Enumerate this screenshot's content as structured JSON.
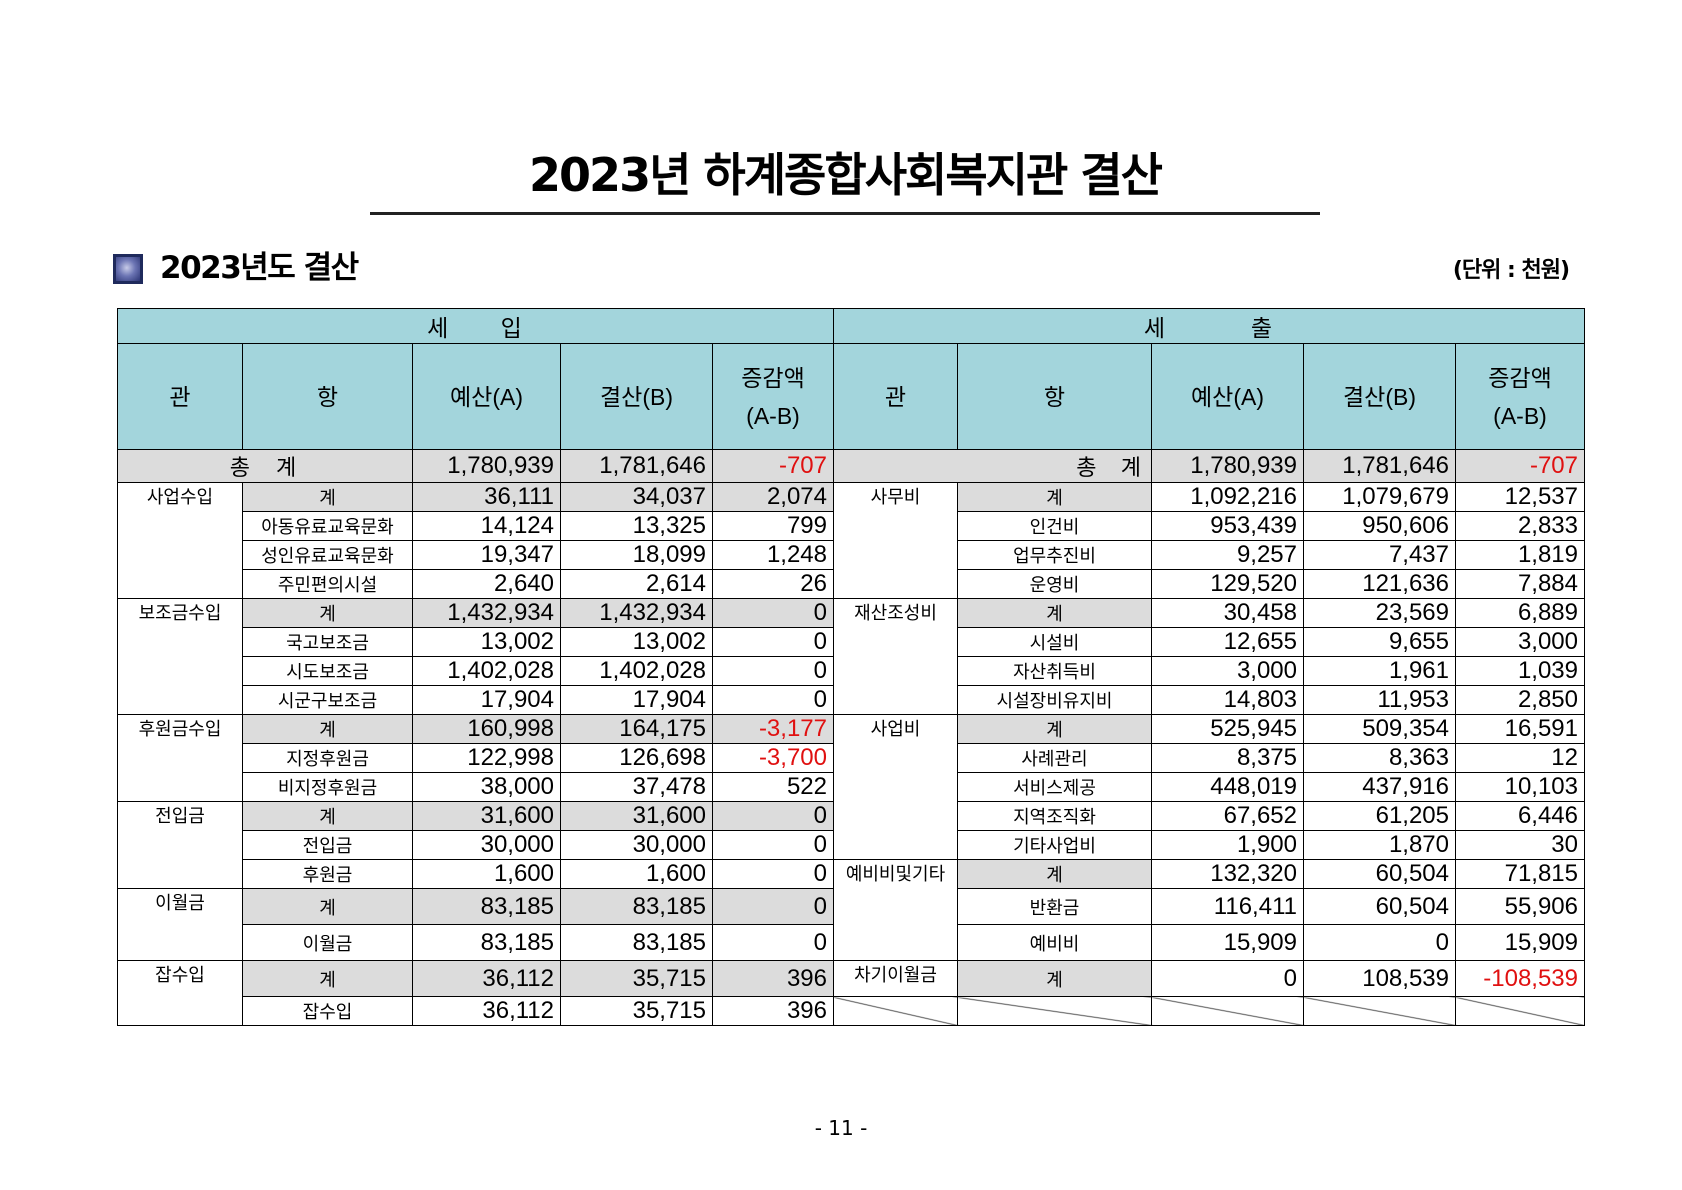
{
  "title": "2023년 하계종합사회복지관 결산",
  "section_title": "2023년도 결산",
  "unit": "(단위 : 천원)",
  "table": {
    "revenue_label": "세      입",
    "expense_label": "세          출",
    "col_gwan": "관",
    "col_hang": "항",
    "col_budget": "예산(A)",
    "col_settle": "결산(B)",
    "col_diff_1": "증감액",
    "col_diff_2": "(A-B)",
    "total_label": "총  계",
    "revenue_total": [
      "1,780,939",
      "1,781,646",
      "-707"
    ],
    "expense_total": [
      "1,780,939",
      "1,781,646",
      "-707"
    ],
    "revenue_rows": [
      {
        "gwan": "사업수입",
        "hang": "계",
        "a": "36,111",
        "b": "34,037",
        "d": "2,074"
      },
      {
        "gwan": "",
        "hang": "아동유료교육문화",
        "a": "14,124",
        "b": "13,325",
        "d": "799"
      },
      {
        "gwan": "",
        "hang": "성인유료교육문화",
        "a": "19,347",
        "b": "18,099",
        "d": "1,248"
      },
      {
        "gwan": "",
        "hang": "주민편의시설",
        "a": "2,640",
        "b": "2,614",
        "d": "26"
      },
      {
        "gwan": "보조금수입",
        "hang": "계",
        "a": "1,432,934",
        "b": "1,432,934",
        "d": "0"
      },
      {
        "gwan": "",
        "hang": "국고보조금",
        "a": "13,002",
        "b": "13,002",
        "d": "0"
      },
      {
        "gwan": "",
        "hang": "시도보조금",
        "a": "1,402,028",
        "b": "1,402,028",
        "d": "0"
      },
      {
        "gwan": "",
        "hang": "시군구보조금",
        "a": "17,904",
        "b": "17,904",
        "d": "0"
      },
      {
        "gwan": "후원금수입",
        "hang": "계",
        "a": "160,998",
        "b": "164,175",
        "d": "-3,177"
      },
      {
        "gwan": "",
        "hang": "지정후원금",
        "a": "122,998",
        "b": "126,698",
        "d": "-3,700"
      },
      {
        "gwan": "",
        "hang": "비지정후원금",
        "a": "38,000",
        "b": "37,478",
        "d": "522"
      },
      {
        "gwan": "전입금",
        "hang": "계",
        "a": "31,600",
        "b": "31,600",
        "d": "0"
      },
      {
        "gwan": "",
        "hang": "전입금",
        "a": "30,000",
        "b": "30,000",
        "d": "0"
      },
      {
        "gwan": "",
        "hang": "후원금",
        "a": "1,600",
        "b": "1,600",
        "d": "0"
      },
      {
        "gwan": "이월금",
        "hang": "계",
        "a": "83,185",
        "b": "83,185",
        "d": "0"
      },
      {
        "gwan": "",
        "hang": "이월금",
        "a": "83,185",
        "b": "83,185",
        "d": "0"
      },
      {
        "gwan": "잡수입",
        "hang": "계",
        "a": "36,112",
        "b": "35,715",
        "d": "396"
      },
      {
        "gwan": "",
        "hang": "잡수입",
        "a": "36,112",
        "b": "35,715",
        "d": "396"
      }
    ],
    "expense_rows": [
      {
        "gwan": "사무비",
        "hang": "계",
        "a": "1,092,216",
        "b": "1,079,679",
        "d": "12,537"
      },
      {
        "gwan": "",
        "hang": "인건비",
        "a": "953,439",
        "b": "950,606",
        "d": "2,833"
      },
      {
        "gwan": "",
        "hang": "업무추진비",
        "a": "9,257",
        "b": "7,437",
        "d": "1,819"
      },
      {
        "gwan": "",
        "hang": "운영비",
        "a": "129,520",
        "b": "121,636",
        "d": "7,884"
      },
      {
        "gwan": "재산조성비",
        "hang": "계",
        "a": "30,458",
        "b": "23,569",
        "d": "6,889"
      },
      {
        "gwan": "",
        "hang": "시설비",
        "a": "12,655",
        "b": "9,655",
        "d": "3,000"
      },
      {
        "gwan": "",
        "hang": "자산취득비",
        "a": "3,000",
        "b": "1,961",
        "d": "1,039"
      },
      {
        "gwan": "",
        "hang": "시설장비유지비",
        "a": "14,803",
        "b": "11,953",
        "d": "2,850"
      },
      {
        "gwan": "사업비",
        "hang": "계",
        "a": "525,945",
        "b": "509,354",
        "d": "16,591"
      },
      {
        "gwan": "",
        "hang": "사례관리",
        "a": "8,375",
        "b": "8,363",
        "d": "12"
      },
      {
        "gwan": "",
        "hang": "서비스제공",
        "a": "448,019",
        "b": "437,916",
        "d": "10,103"
      },
      {
        "gwan": "",
        "hang": "지역조직화",
        "a": "67,652",
        "b": "61,205",
        "d": "6,446"
      },
      {
        "gwan": "",
        "hang": "기타사업비",
        "a": "1,900",
        "b": "1,870",
        "d": "30"
      },
      {
        "gwan": "예비비및기타",
        "hang": "계",
        "a": "132,320",
        "b": "60,504",
        "d": "71,815"
      },
      {
        "gwan": "",
        "hang": "반환금",
        "a": "116,411",
        "b": "60,504",
        "d": "55,906"
      },
      {
        "gwan": "",
        "hang": "예비비",
        "a": "15,909",
        "b": "0",
        "d": "15,909"
      },
      {
        "gwan": "차기이월금",
        "hang": "계",
        "a": "0",
        "b": "108,539",
        "d": "-108,539"
      }
    ]
  },
  "page_number": "- 11 -",
  "colors": {
    "header_bg": "#a3d5dc",
    "subtotal_bg": "#dcdcdc",
    "negative": "#e01010"
  }
}
